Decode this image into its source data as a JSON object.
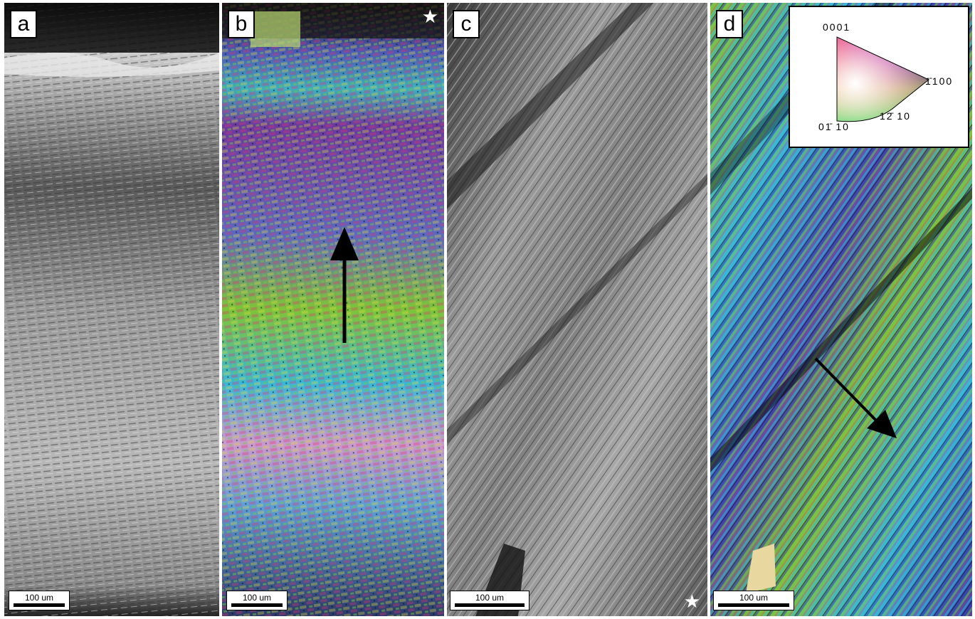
{
  "panels": [
    {
      "label": "a",
      "scale": "100 um"
    },
    {
      "label": "b",
      "scale": "100 um"
    },
    {
      "label": "c",
      "scale": "100 um"
    },
    {
      "label": "d",
      "scale": "100 um"
    }
  ],
  "legend": {
    "pole_0001": "0001",
    "pole_1100": "1̄100",
    "pole_0110": "01̄ 10",
    "pole_1210": "12̄ 10"
  },
  "colors": {
    "ipf_red": "#e8306a",
    "ipf_blue": "#3a3aa8",
    "ipf_green": "#7cc43a",
    "ipf_cyan": "#38b8d8",
    "ipf_purple": "#6a3aa0",
    "ipf_yellow": "#e8d83a"
  }
}
